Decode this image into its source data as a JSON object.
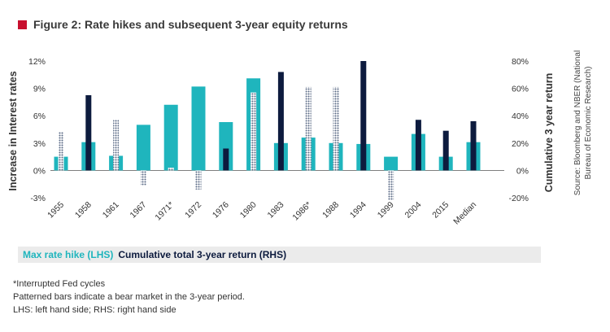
{
  "title": "Figure 2: Rate hikes and subsequent 3-year equity returns",
  "colors": {
    "accent_square": "#c8102e",
    "lhs_bar": "#1fb5bd",
    "rhs_bar": "#0d1b3e",
    "patterned": "#5a6a85"
  },
  "chart_data": {
    "type": "bar",
    "categories": [
      "1955",
      "1958",
      "1961",
      "1967",
      "1971*",
      "1972",
      "1976",
      "1980",
      "1983",
      "1986*",
      "1988",
      "1994",
      "1999",
      "2004",
      "2015",
      "Median"
    ],
    "series": [
      {
        "name": "Max rate hike (LHS)",
        "axis": "left",
        "values": [
          1.5,
          3.1,
          1.6,
          5.0,
          7.2,
          9.2,
          5.3,
          10.1,
          3.0,
          3.6,
          3.0,
          2.9,
          1.5,
          4.0,
          1.5,
          3.1
        ]
      },
      {
        "name": "Cumulative total 3-year return (RHS)",
        "axis": "right",
        "values": [
          28,
          55,
          37,
          -11,
          2,
          -14,
          16,
          57,
          72,
          61,
          61,
          80,
          -22,
          37,
          29,
          36
        ],
        "patterned": [
          true,
          false,
          true,
          true,
          true,
          true,
          false,
          true,
          false,
          true,
          true,
          false,
          true,
          false,
          false,
          false
        ]
      }
    ],
    "y_left": {
      "label": "Increase in Interest rates",
      "ylim": [
        -3,
        12
      ],
      "ticks": [
        "-3%",
        "0%",
        "3%",
        "6%",
        "9%",
        "12%"
      ],
      "tick_values": [
        -3,
        0,
        3,
        6,
        9,
        12
      ]
    },
    "y_right": {
      "label": "Cumulative 3 year return",
      "ylim": [
        -20,
        80
      ],
      "ticks": [
        "-20%",
        "0%",
        "20%",
        "40%",
        "60%",
        "80%"
      ],
      "tick_values": [
        -20,
        0,
        20,
        40,
        60,
        80
      ]
    },
    "grid": false,
    "legend_position": "bottom"
  },
  "source": {
    "line1": "Source: Bloomberg and NBER (National",
    "line2": "Bureau of Economic Research)"
  },
  "legend": {
    "lhs_label": "Max rate hike (LHS)",
    "rhs_label": "Cumulative total 3-year return (RHS)"
  },
  "footnotes": [
    "*Interrupted Fed cycles",
    "Patterned bars indicate a bear market in the 3-year period.",
    "LHS: left hand side; RHS: right hand side"
  ]
}
